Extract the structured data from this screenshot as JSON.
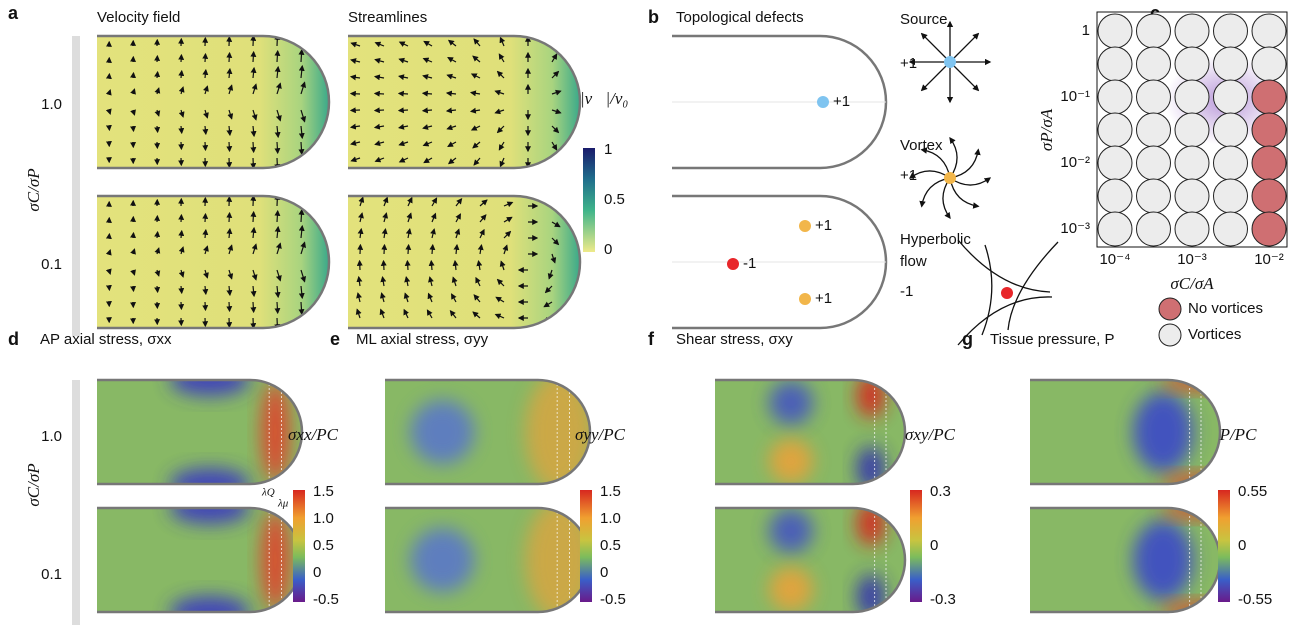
{
  "row_axis_label": "σC/σP",
  "row_labels": [
    "1.0",
    "0.1"
  ],
  "panel_a": {
    "label": "a",
    "titles": [
      "Velocity field",
      "Streamlines"
    ],
    "colorbar_label": "|v⃗|/v₀",
    "colorbar_ticks": [
      "1",
      "0.5",
      "0"
    ]
  },
  "panel_b": {
    "label": "b",
    "title": "Topological defects",
    "defects": [
      {
        "label": "+1",
        "color": "#7fc4f0"
      },
      {
        "label": "+1",
        "color": "#f2b64a"
      },
      {
        "label": "-1",
        "color": "#e8262a"
      },
      {
        "label": "+1",
        "color": "#f2b64a"
      }
    ],
    "legend": [
      {
        "name": [
          "Source"
        ],
        "charge": "+1",
        "color": "#7fc4f0"
      },
      {
        "name": [
          "Vortex"
        ],
        "charge": "+1",
        "color": "#f2b64a"
      },
      {
        "name": [
          "Hyperbolic",
          "flow"
        ],
        "charge": "-1",
        "color": "#e8262a"
      }
    ]
  },
  "panel_c": {
    "label": "c",
    "ylabel": "σP/σA",
    "xlabel": "σC/σA",
    "yticks": [
      "1",
      "10⁻¹",
      "10⁻²",
      "10⁻³"
    ],
    "xticks": [
      "10⁻⁴",
      "10⁻³",
      "10⁻²"
    ],
    "legend": [
      {
        "name": "No vortices",
        "color": "#cf6f72"
      },
      {
        "name": "Vortices",
        "color": "#ececec"
      }
    ],
    "vortices": [
      [
        true,
        true,
        true,
        true,
        true
      ],
      [
        true,
        true,
        true,
        true,
        true
      ],
      [
        true,
        true,
        true,
        true,
        false
      ],
      [
        true,
        true,
        true,
        true,
        false
      ],
      [
        true,
        true,
        true,
        true,
        false
      ],
      [
        true,
        true,
        true,
        true,
        false
      ],
      [
        true,
        true,
        true,
        true,
        false
      ]
    ]
  },
  "stress_panels": [
    {
      "label": "d",
      "title": "AP axial stress, σxx",
      "colorbar_label": "σxx/PC",
      "colorbar_ticks": [
        "1.5",
        "1.0",
        "0.5",
        "0",
        "-0.5"
      ]
    },
    {
      "label": "e",
      "title": "ML axial stress, σyy",
      "colorbar_label": "σyy/PC",
      "colorbar_ticks": [
        "1.5",
        "1.0",
        "0.5",
        "0",
        "-0.5"
      ]
    },
    {
      "label": "f",
      "title": "Shear stress, σxy",
      "colorbar_label": "σxy/PC",
      "colorbar_ticks": [
        "0.3",
        "0",
        "-0.3"
      ]
    },
    {
      "label": "g",
      "title": "Tissue pressure, P",
      "colorbar_label": "P/PC",
      "colorbar_ticks": [
        "0.55",
        "0",
        "-0.55"
      ]
    }
  ],
  "annotations": [
    "λQ",
    "λμ"
  ]
}
